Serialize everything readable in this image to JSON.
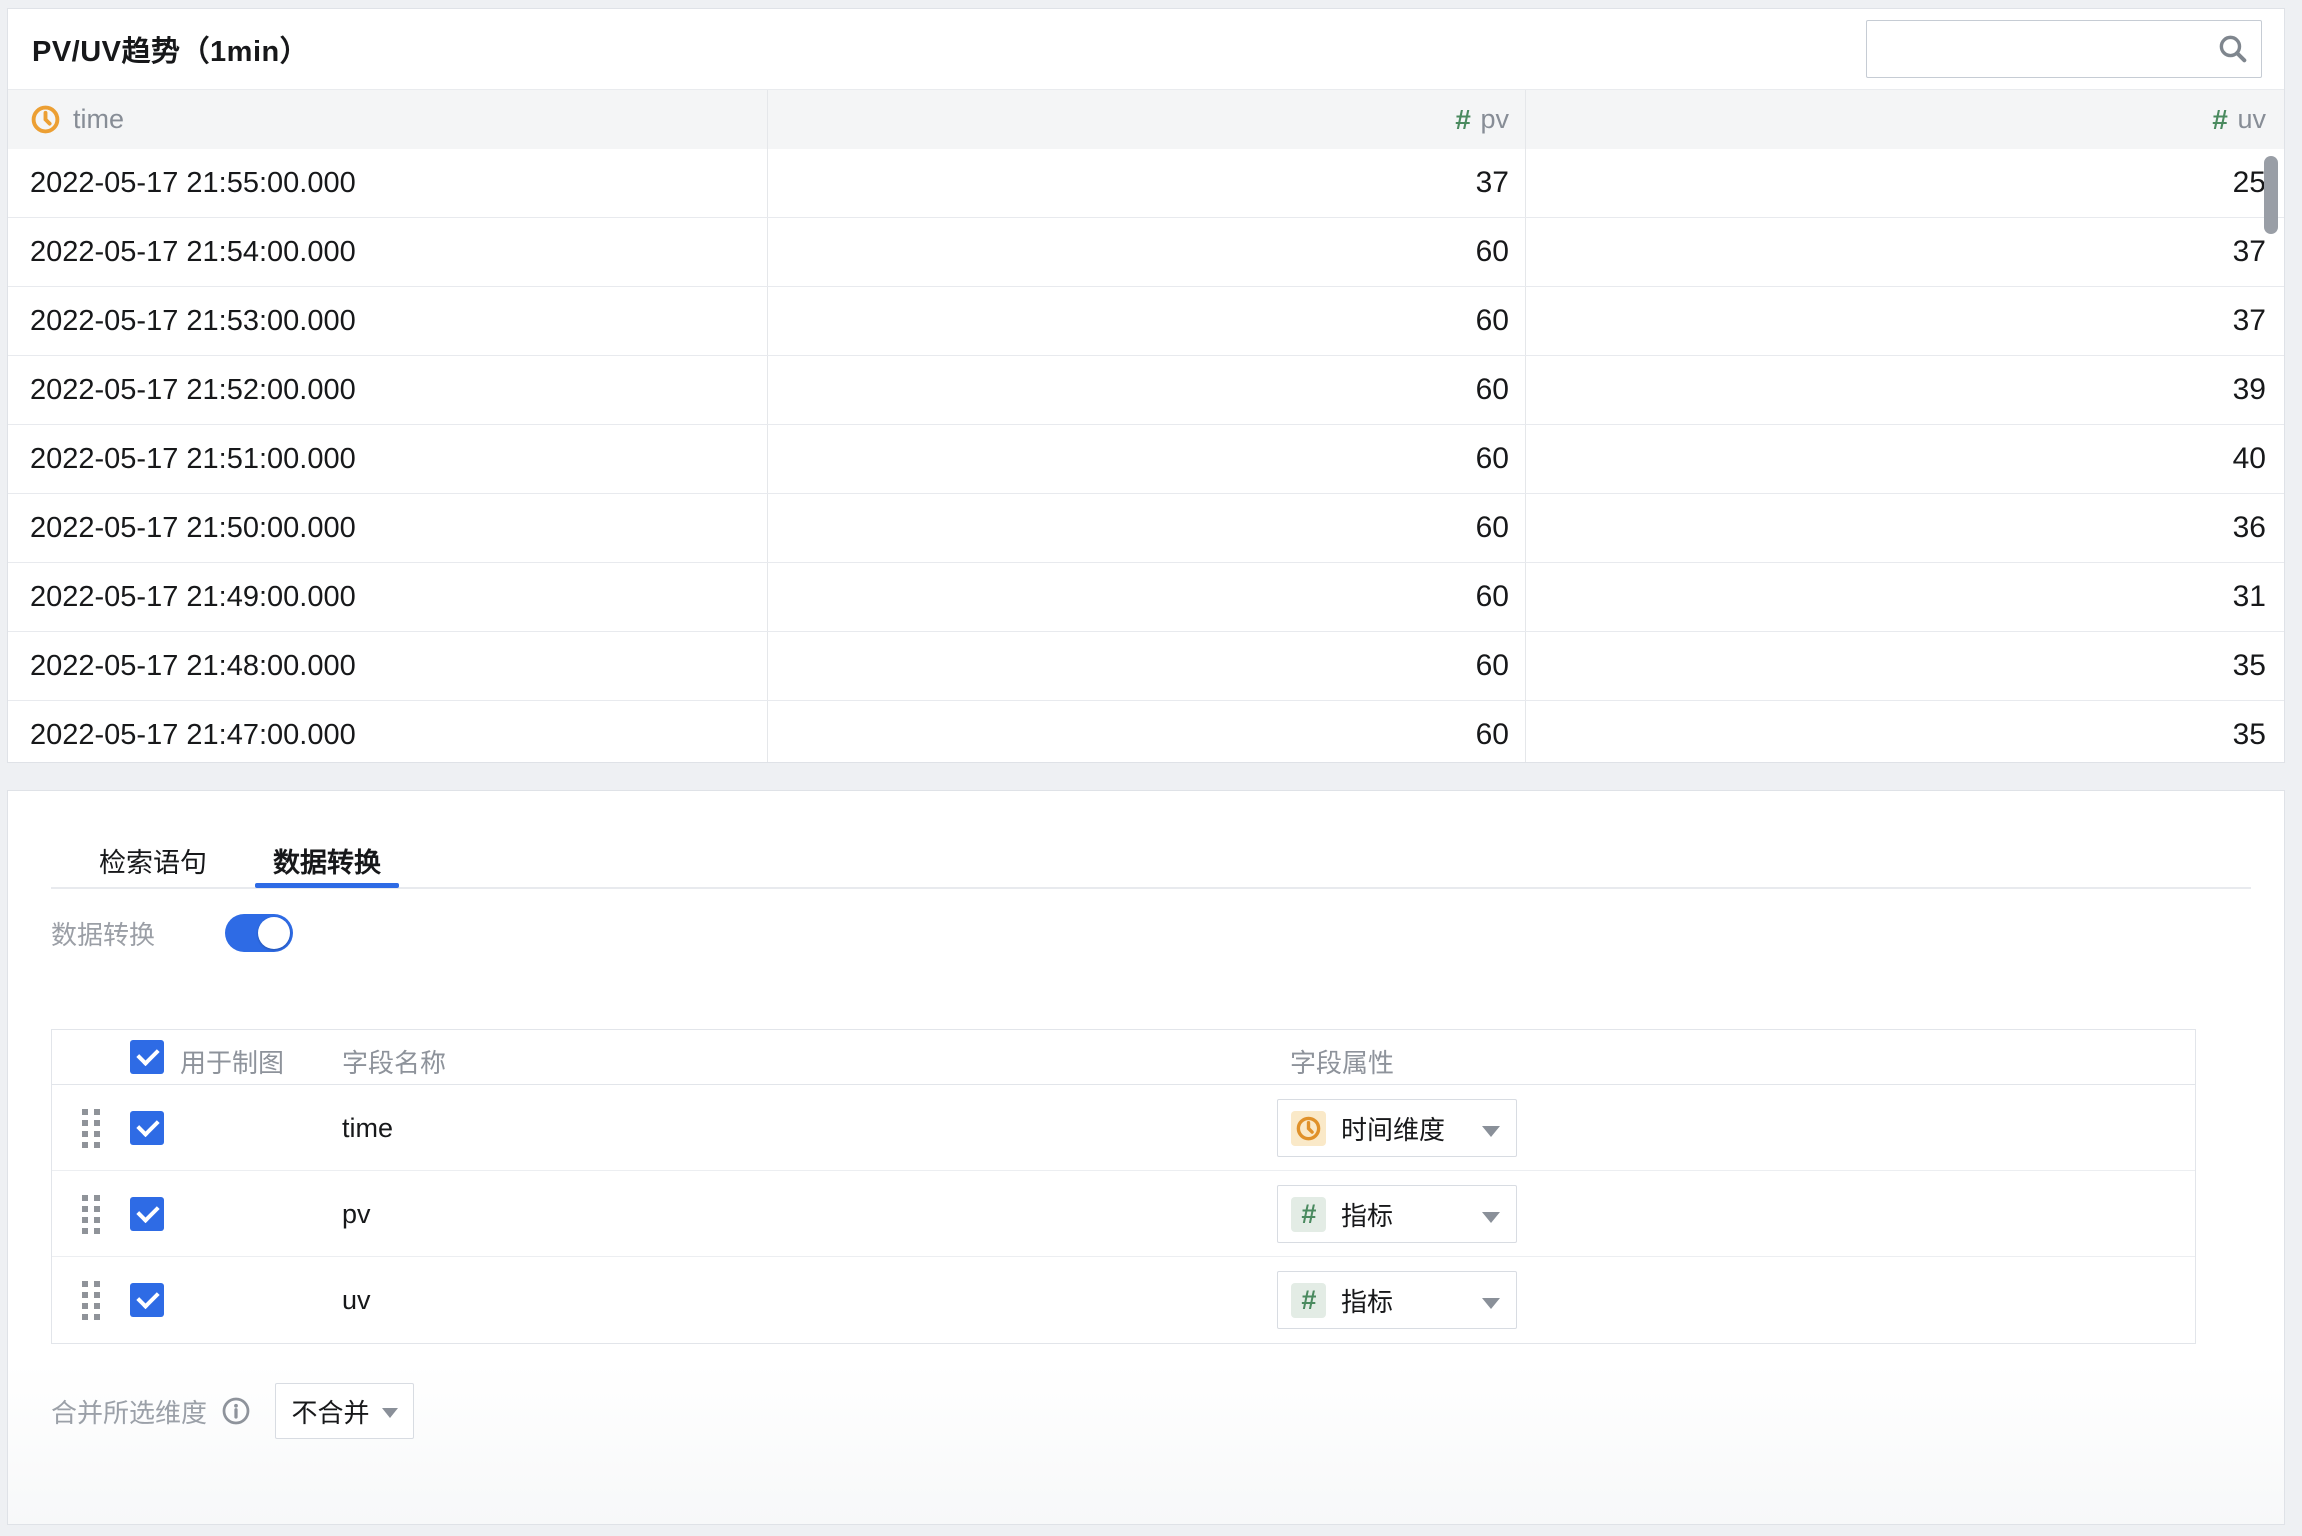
{
  "header": {
    "title": "PV/UV趋势（1min）",
    "search_value": "",
    "search_placeholder": ""
  },
  "table": {
    "columns": [
      {
        "key": "time",
        "label": "time",
        "type": "time"
      },
      {
        "key": "pv",
        "label": "pv",
        "type": "number"
      },
      {
        "key": "uv",
        "label": "uv",
        "type": "number"
      }
    ],
    "rows": [
      {
        "time": "2022-05-17 21:55:00.000",
        "pv": "37",
        "uv": "25"
      },
      {
        "time": "2022-05-17 21:54:00.000",
        "pv": "60",
        "uv": "37"
      },
      {
        "time": "2022-05-17 21:53:00.000",
        "pv": "60",
        "uv": "37"
      },
      {
        "time": "2022-05-17 21:52:00.000",
        "pv": "60",
        "uv": "39"
      },
      {
        "time": "2022-05-17 21:51:00.000",
        "pv": "60",
        "uv": "40"
      },
      {
        "time": "2022-05-17 21:50:00.000",
        "pv": "60",
        "uv": "36"
      },
      {
        "time": "2022-05-17 21:49:00.000",
        "pv": "60",
        "uv": "31"
      },
      {
        "time": "2022-05-17 21:48:00.000",
        "pv": "60",
        "uv": "35"
      },
      {
        "time": "2022-05-17 21:47:00.000",
        "pv": "60",
        "uv": "35"
      }
    ]
  },
  "panel": {
    "tabs": [
      {
        "label": "检索语句",
        "active": false
      },
      {
        "label": "数据转换",
        "active": true
      }
    ],
    "toggle": {
      "label": "数据转换",
      "on": true
    },
    "field_table": {
      "headers": {
        "use_for_chart": "用于制图",
        "field_name": "字段名称",
        "field_attr": "字段属性"
      },
      "rows": [
        {
          "name": "time",
          "checked": true,
          "attr": "时间维度",
          "attr_type": "time"
        },
        {
          "name": "pv",
          "checked": true,
          "attr": "指标",
          "attr_type": "number"
        },
        {
          "name": "uv",
          "checked": true,
          "attr": "指标",
          "attr_type": "number"
        }
      ]
    },
    "merge": {
      "label": "合并所选维度",
      "value": "不合并"
    }
  },
  "colors": {
    "accent": "#2e6be5",
    "time_orange": "#ec9f33",
    "metric_green": "#4a8a5f",
    "header_gray": "#878d96"
  }
}
